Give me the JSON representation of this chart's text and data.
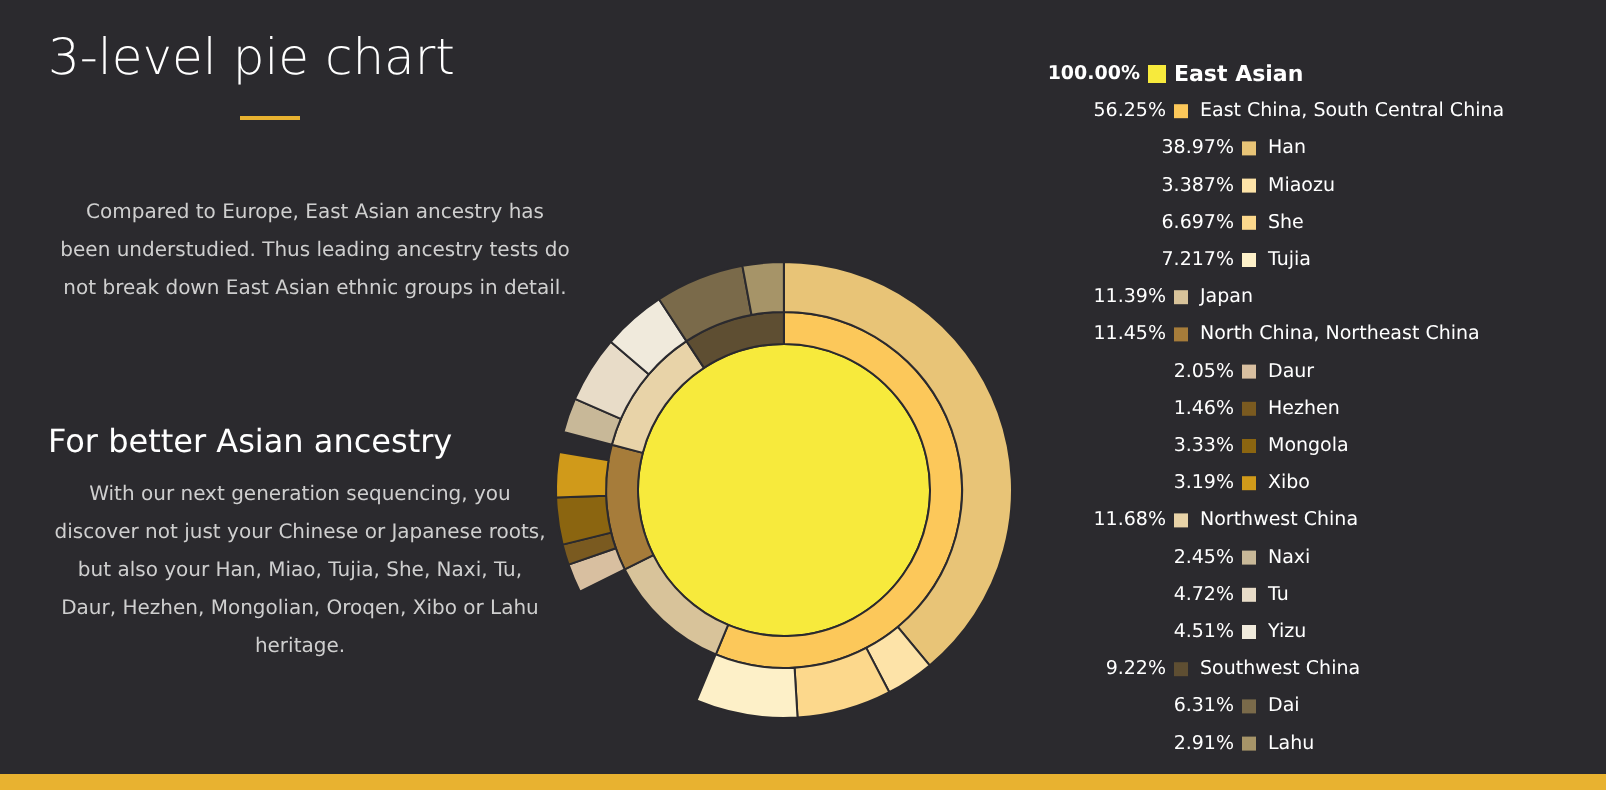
{
  "chart_data": {
    "type": "other",
    "title": "3-level pie chart",
    "annotations": [
      "Compared to Europe, East Asian ancestry has been understudied. Thus leading ancestry tests do not break down East Asian ethnic groups in detail.",
      "For better Asian ancestry",
      "With our next generation sequencing, you discover not just your Chinese or Japanese roots, but also your Han, Miao, Tujia, She, Naxi, Tu, Daur, Hezhen, Mongolian, Oroqen, Xibo or Lahu heritage."
    ],
    "categories": [
      "East Asian",
      "East China, South Central China",
      "Han",
      "Miaozu",
      "She",
      "Tujia",
      "Japan",
      "North China, Northeast China",
      "Daur",
      "Hezhen",
      "Mongola",
      "Xibo",
      "Northwest China",
      "Naxi",
      "Tu",
      "Yizu",
      "Southwest China",
      "Dai",
      "Lahu"
    ],
    "colors": [
      "#f7ea3c",
      "#fcc85a",
      "#e8c477",
      "#fde3a8",
      "#fcd88c",
      "#fdf0c8",
      "#d8c39a",
      "#a67c3a",
      "#d8bfa0",
      "#7a5a20",
      "#8b6510",
      "#d09a1a",
      "#e8d3a8",
      "#c8b898",
      "#e8dcc8",
      "#f0eadc",
      "#5e4e32",
      "#7a6a4a",
      "#a69468"
    ],
    "series": [
      {
        "values": [
          100,
          null,
          null,
          null,
          null,
          null,
          null,
          null,
          null,
          null,
          null,
          null,
          null,
          null,
          null,
          null,
          null,
          null,
          null
        ],
        "value_labels": [
          "100.00%",
          null,
          null,
          null,
          null,
          null,
          null,
          null,
          null,
          null,
          null,
          null,
          null,
          null,
          null,
          null,
          null,
          null,
          null
        ]
      },
      {
        "values": [
          null,
          56.25,
          null,
          null,
          null,
          null,
          11.39,
          11.45,
          null,
          null,
          null,
          null,
          11.68,
          null,
          null,
          null,
          9.22,
          null,
          null
        ],
        "value_labels": [
          null,
          "56.25%",
          null,
          null,
          null,
          null,
          "11.39%",
          "11.45%",
          null,
          null,
          null,
          null,
          "11.68%",
          null,
          null,
          null,
          "9.22%",
          null,
          null
        ]
      },
      {
        "values": [
          null,
          null,
          38.97,
          3.387,
          6.697,
          7.217,
          null,
          null,
          2.05,
          1.46,
          3.33,
          3.19,
          null,
          2.45,
          4.72,
          4.51,
          null,
          6.31,
          2.91
        ],
        "value_labels": [
          null,
          null,
          "38.97%",
          "3.387%",
          "6.697%",
          "7.217%",
          null,
          null,
          "2.05%",
          "1.46%",
          "3.33%",
          "3.19%",
          null,
          "2.45%",
          "4.72%",
          "4.51%",
          null,
          "6.31%",
          "2.91%"
        ]
      }
    ],
    "data_labels": true
  }
}
